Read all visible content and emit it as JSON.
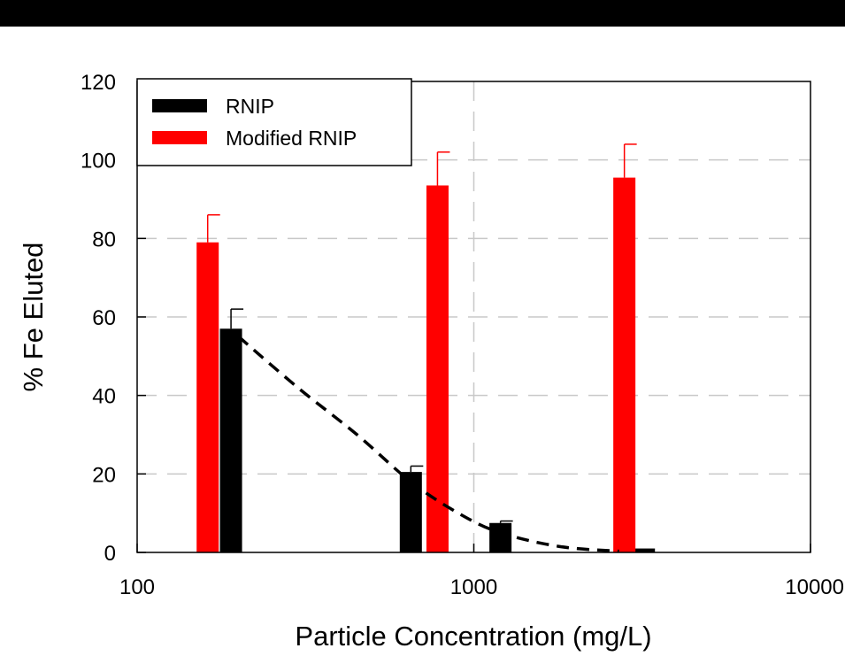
{
  "chart_data": {
    "type": "bar",
    "xscale": "log",
    "xlim": [
      100,
      10000
    ],
    "ylim": [
      0,
      120
    ],
    "xticks": [
      "100",
      "1000",
      "10000"
    ],
    "yticks": [
      "0",
      "20",
      "40",
      "60",
      "80",
      "100",
      "120"
    ],
    "xlabel": "Particle Concentration (mg/L)",
    "ylabel": "% Fe Eluted",
    "grid": true,
    "legend_position": "top-left",
    "series": [
      {
        "name": "RNIP",
        "color": "#000000",
        "points": [
          {
            "x": 190,
            "y": 57,
            "err": 5
          },
          {
            "x": 650,
            "y": 20.5,
            "err": 1.5
          },
          {
            "x": 1200,
            "y": 7.5,
            "err": 0.5
          },
          {
            "x": 3200,
            "y": 1,
            "err": 0
          }
        ]
      },
      {
        "name": "Modified RNIP",
        "color": "#ff0000",
        "points": [
          {
            "x": 162,
            "y": 79,
            "err": 7
          },
          {
            "x": 780,
            "y": 93.5,
            "err": 8.5
          },
          {
            "x": 2800,
            "y": 95.5,
            "err": 8.5
          }
        ]
      }
    ],
    "fit_curve": {
      "style": "dashed",
      "color": "#000000",
      "points": [
        [
          200,
          55
        ],
        [
          300,
          42
        ],
        [
          450,
          30
        ],
        [
          650,
          18
        ],
        [
          900,
          10
        ],
        [
          1200,
          5
        ],
        [
          1800,
          1.5
        ],
        [
          2700,
          0.3
        ]
      ]
    }
  }
}
